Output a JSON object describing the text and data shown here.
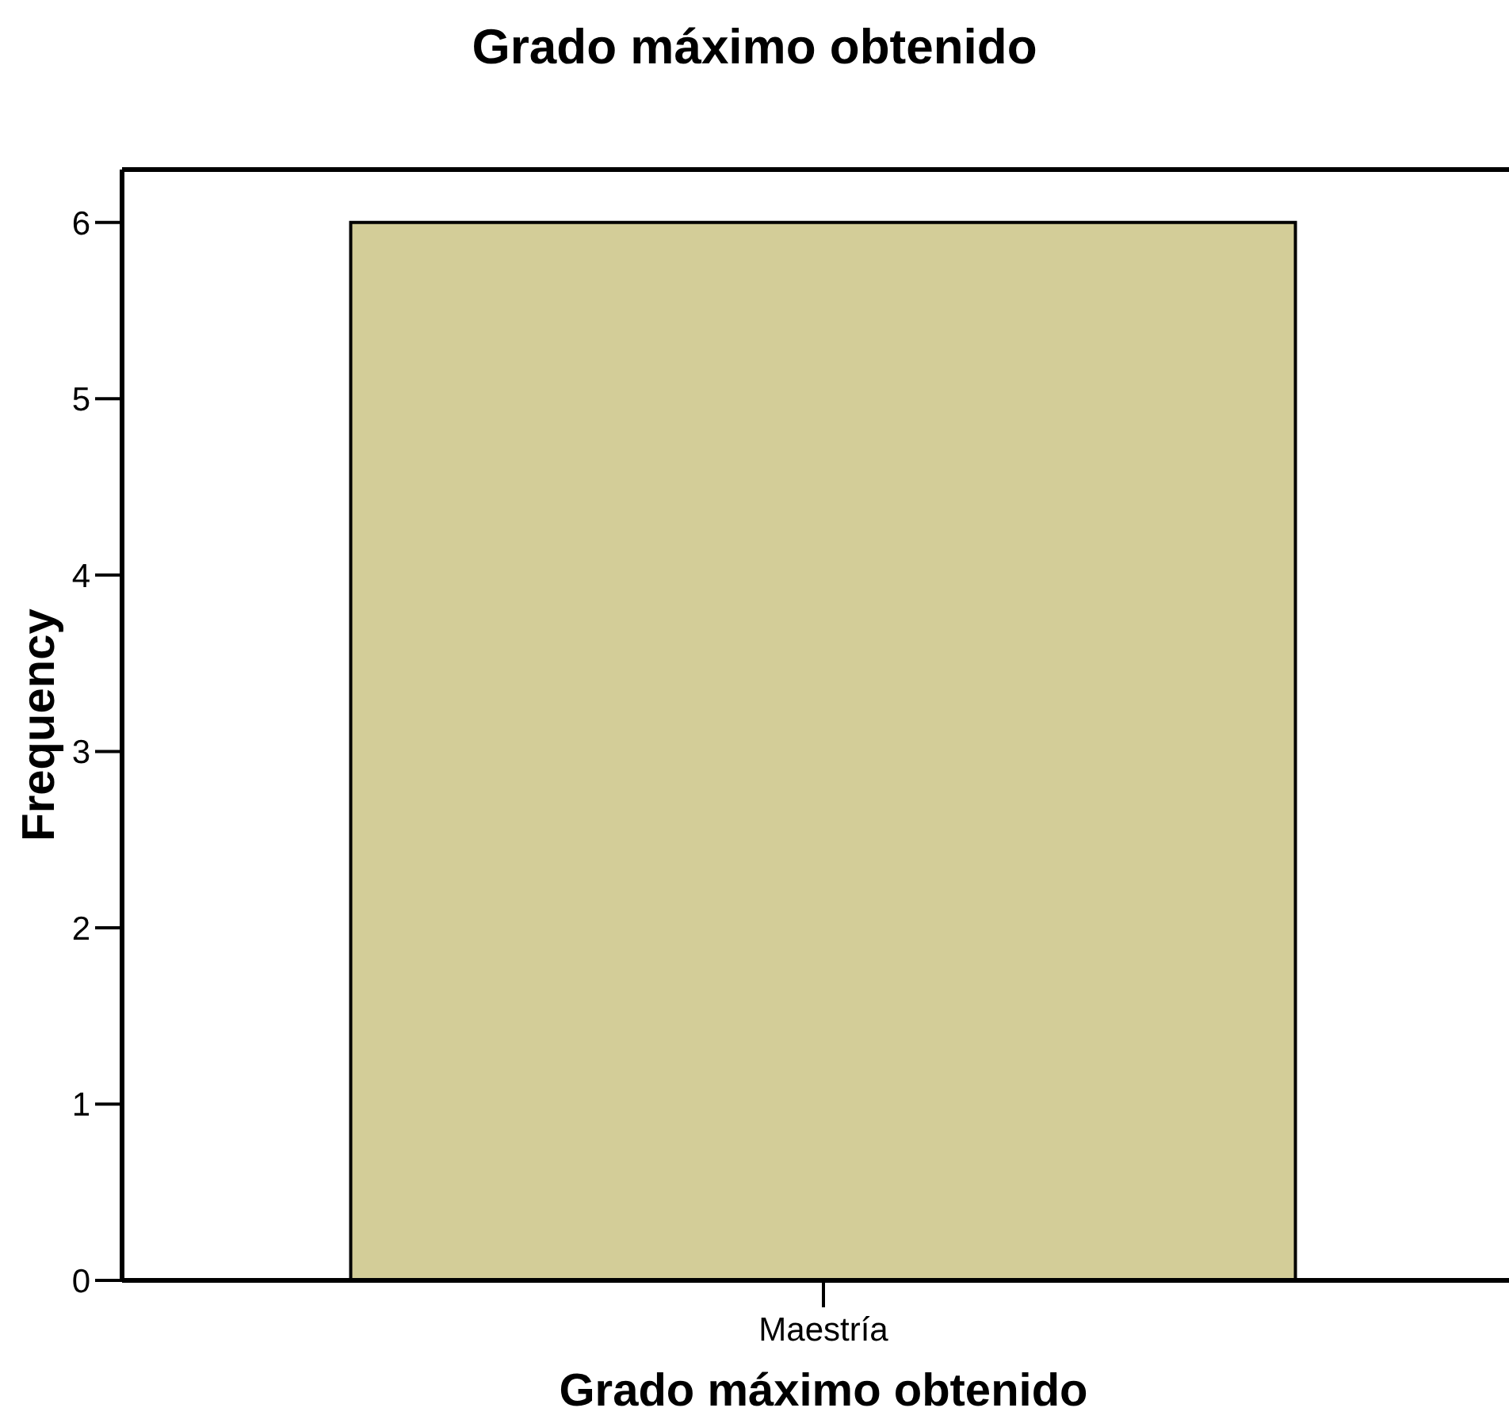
{
  "chart_data": {
    "type": "bar",
    "title": "Grado máximo obtenido",
    "xlabel": "Grado máximo obtenido",
    "ylabel": "Frequency",
    "categories": [
      "Maestría"
    ],
    "values": [
      6
    ],
    "color": "#d3cd98",
    "ylim": [
      0,
      6.3
    ],
    "yticks": [
      0,
      1,
      2,
      3,
      4,
      5,
      6
    ]
  }
}
